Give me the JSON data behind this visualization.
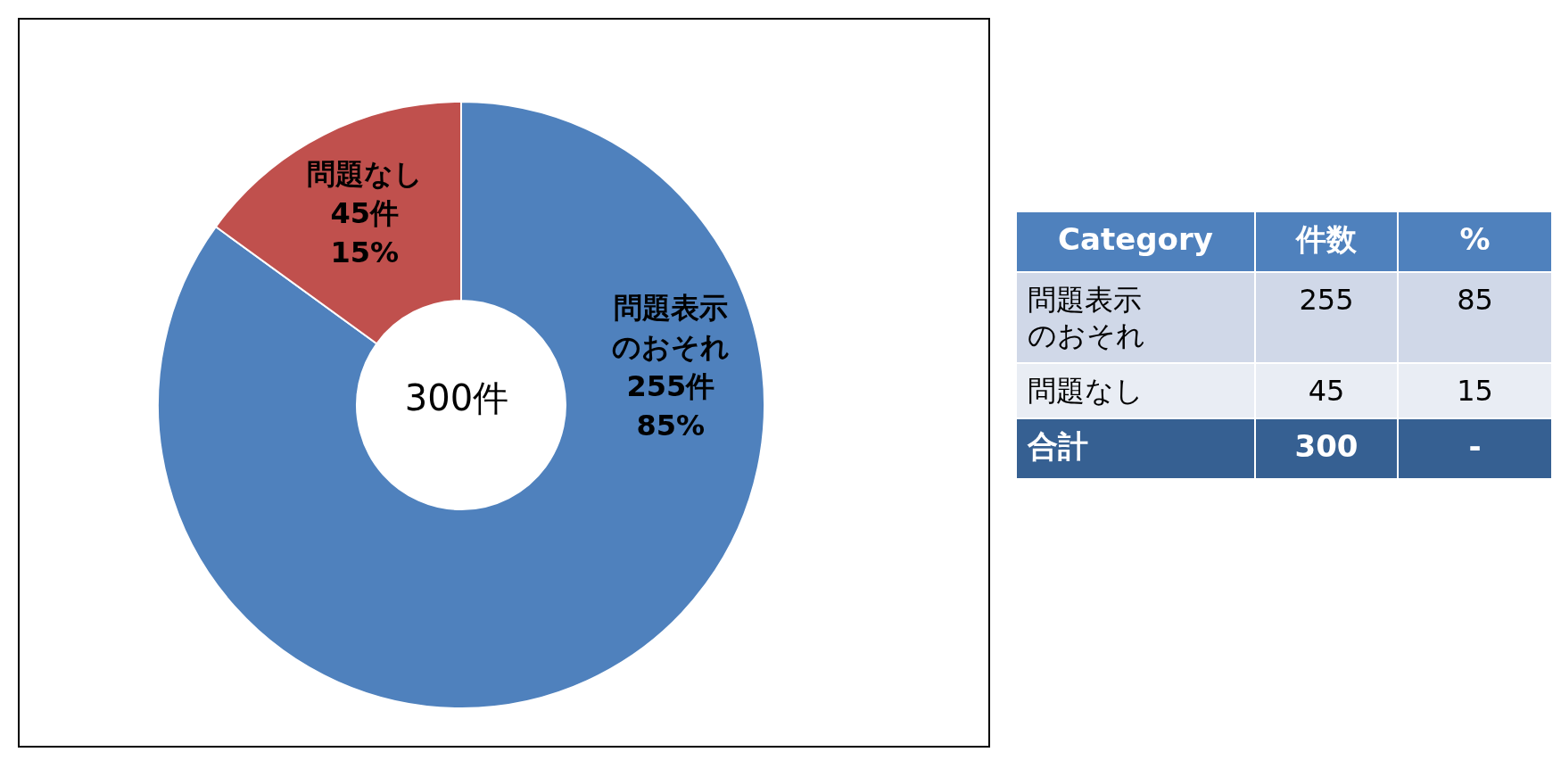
{
  "chart_data": {
    "type": "donut",
    "categories": [
      "問題表示のおそれ",
      "問題なし"
    ],
    "values": [
      255,
      45
    ],
    "colors": [
      "#4f81bd",
      "#c0504d"
    ],
    "value_labels": [
      "255件\n85%",
      "45件\n15%"
    ],
    "annotations": [
      "300件",
      "Category",
      "件数",
      "%",
      "合計",
      "300",
      "-",
      "255",
      "85",
      "45",
      "15"
    ]
  }
}
